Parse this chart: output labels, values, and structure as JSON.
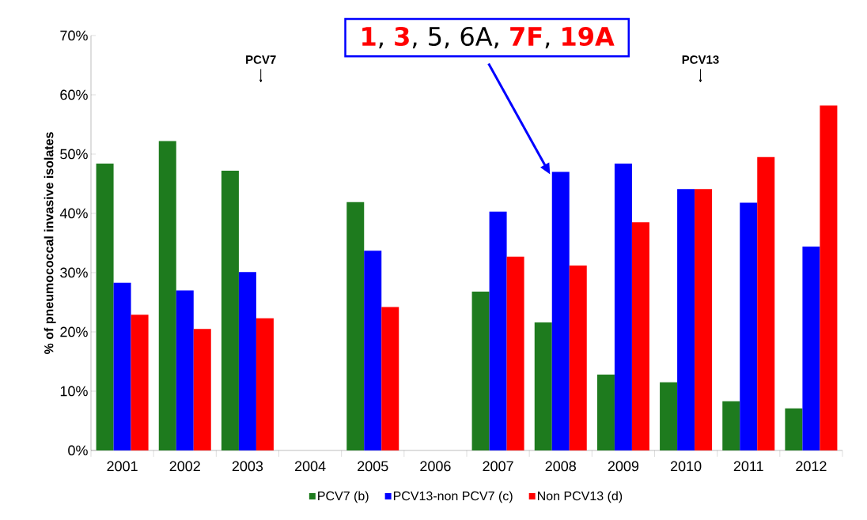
{
  "chart_data": {
    "type": "bar",
    "ylabel": "% of pneumococcal invasive isolates",
    "categories": [
      "2001",
      "2002",
      "2003",
      "2004",
      "2005",
      "2006",
      "2007",
      "2008",
      "2009",
      "2010",
      "2011",
      "2012"
    ],
    "series": [
      {
        "name": "PCV7 (b)",
        "color": "#1e7b1e",
        "values": [
          48.4,
          52.2,
          47.2,
          null,
          41.9,
          null,
          26.8,
          21.6,
          12.8,
          11.5,
          8.3,
          7.1
        ]
      },
      {
        "name": "PCV13-non PCV7 (c)",
        "color": "#0000ff",
        "values": [
          28.3,
          27.0,
          30.1,
          null,
          33.7,
          null,
          40.3,
          47.0,
          48.4,
          44.1,
          41.8,
          34.4
        ]
      },
      {
        "name": "Non PCV13 (d)",
        "color": "#ff0000",
        "values": [
          22.9,
          20.5,
          22.3,
          null,
          24.2,
          null,
          32.7,
          31.2,
          38.5,
          44.1,
          49.5,
          58.2
        ]
      }
    ],
    "ylim": [
      0,
      70
    ],
    "yticks": [
      {
        "value": 0,
        "label": "0%"
      },
      {
        "value": 10,
        "label": "10%"
      },
      {
        "value": 20,
        "label": "20%"
      },
      {
        "value": 30,
        "label": "30%"
      },
      {
        "value": 40,
        "label": "40%"
      },
      {
        "value": 50,
        "label": "50%"
      },
      {
        "value": 60,
        "label": "60%"
      },
      {
        "value": 70,
        "label": "70%"
      }
    ],
    "annotations": [
      "PCV7",
      "PCV13",
      "**1**, **3**, 5, 6A, **7F**, **19A**"
    ],
    "grid": false,
    "legend": "bottom"
  }
}
